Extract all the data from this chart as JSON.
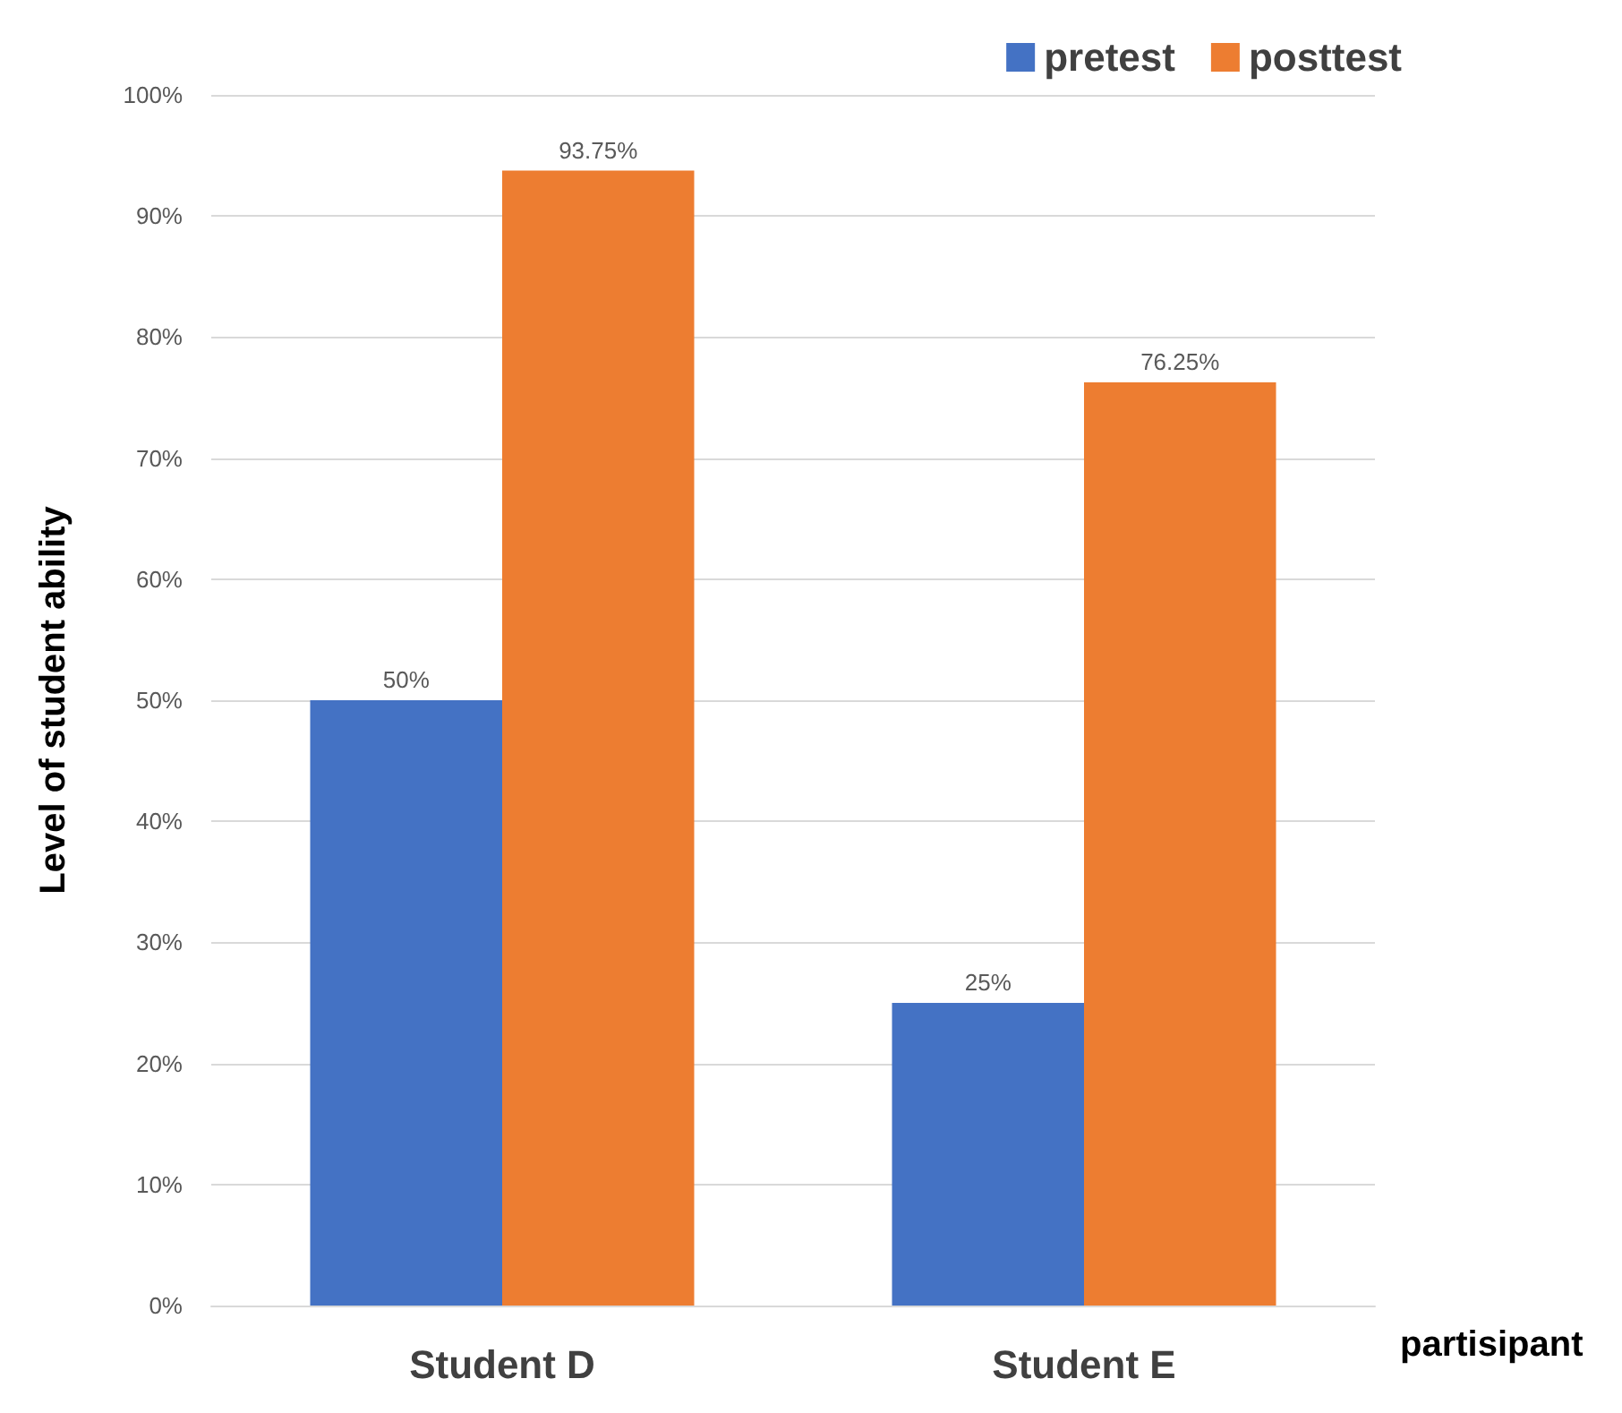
{
  "chart_data": {
    "type": "bar",
    "xlabel": "partisipant",
    "ylabel": "Level of student ability",
    "categories": [
      "Student D",
      "Student E"
    ],
    "series": [
      {
        "name": "pretest",
        "color": "#4472c4",
        "values": [
          50,
          25
        ],
        "value_labels": [
          "50%",
          "25%"
        ]
      },
      {
        "name": "posttest",
        "color": "#ed7d31",
        "values": [
          93.75,
          76.25
        ],
        "value_labels": [
          "93.75%",
          "76.25%"
        ]
      }
    ],
    "ylim": [
      0,
      100
    ],
    "yticks": [
      {
        "value": 0,
        "label": "0%"
      },
      {
        "value": 10,
        "label": "10%"
      },
      {
        "value": 20,
        "label": "20%"
      },
      {
        "value": 30,
        "label": "30%"
      },
      {
        "value": 40,
        "label": "40%"
      },
      {
        "value": 50,
        "label": "50%"
      },
      {
        "value": 60,
        "label": "60%"
      },
      {
        "value": 70,
        "label": "70%"
      },
      {
        "value": 80,
        "label": "80%"
      },
      {
        "value": 90,
        "label": "90%"
      },
      {
        "value": 100,
        "label": "100%"
      }
    ],
    "grid": "y",
    "legend": "top right"
  }
}
